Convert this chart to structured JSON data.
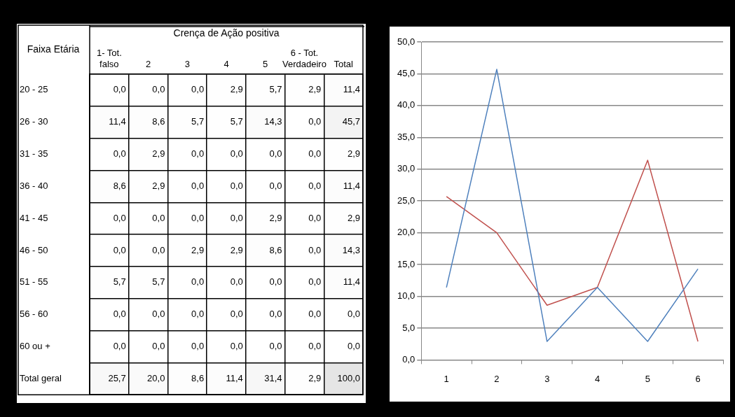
{
  "chart_data": [
    {
      "type": "heatmap",
      "xlabel": "Crença de Ação positiva",
      "ylabel": "Faixa Etária",
      "categories": [
        "1- Tot. falso",
        "2",
        "3",
        "4",
        "5",
        "6 - Tot. Verdadeiro",
        "Total"
      ],
      "y_categories": [
        "20 - 25",
        "26 - 30",
        "31 - 35",
        "36 - 40",
        "41 - 45",
        "46 - 50",
        "51 - 55",
        "56 - 60",
        "60 ou +",
        "Total geral"
      ],
      "cells": [
        [
          0.0,
          0.0,
          0.0,
          2.9,
          5.7,
          2.9,
          11.4
        ],
        [
          11.4,
          8.6,
          5.7,
          5.7,
          14.3,
          0.0,
          45.7
        ],
        [
          0.0,
          2.9,
          0.0,
          0.0,
          0.0,
          0.0,
          2.9
        ],
        [
          8.6,
          2.9,
          0.0,
          0.0,
          0.0,
          0.0,
          11.4
        ],
        [
          0.0,
          0.0,
          0.0,
          0.0,
          2.9,
          0.0,
          2.9
        ],
        [
          0.0,
          0.0,
          2.9,
          2.9,
          8.6,
          0.0,
          14.3
        ],
        [
          5.7,
          5.7,
          0.0,
          0.0,
          0.0,
          0.0,
          11.4
        ],
        [
          0.0,
          0.0,
          0.0,
          0.0,
          0.0,
          0.0,
          0.0
        ],
        [
          0.0,
          0.0,
          0.0,
          0.0,
          0.0,
          0.0,
          0.0
        ],
        [
          25.7,
          20.0,
          8.6,
          11.4,
          31.4,
          2.9,
          100.0
        ]
      ],
      "cell_labels": [
        [
          "0,0",
          "0,0",
          "0,0",
          "2,9",
          "5,7",
          "2,9",
          "11,4"
        ],
        [
          "11,4",
          "8,6",
          "5,7",
          "5,7",
          "14,3",
          "0,0",
          "45,7"
        ],
        [
          "0,0",
          "2,9",
          "0,0",
          "0,0",
          "0,0",
          "0,0",
          "2,9"
        ],
        [
          "8,6",
          "2,9",
          "0,0",
          "0,0",
          "0,0",
          "0,0",
          "11,4"
        ],
        [
          "0,0",
          "0,0",
          "0,0",
          "0,0",
          "2,9",
          "0,0",
          "2,9"
        ],
        [
          "0,0",
          "0,0",
          "2,9",
          "2,9",
          "8,6",
          "0,0",
          "14,3"
        ],
        [
          "5,7",
          "5,7",
          "0,0",
          "0,0",
          "0,0",
          "0,0",
          "11,4"
        ],
        [
          "0,0",
          "0,0",
          "0,0",
          "0,0",
          "0,0",
          "0,0",
          "0,0"
        ],
        [
          "0,0",
          "0,0",
          "0,0",
          "0,0",
          "0,0",
          "0,0",
          "0,0"
        ],
        [
          "25,7",
          "20,0",
          "8,6",
          "11,4",
          "31,4",
          "2,9",
          "100,0"
        ]
      ],
      "data_labels": true
    },
    {
      "type": "line",
      "categories": [
        "1",
        "2",
        "3",
        "4",
        "5",
        "6"
      ],
      "series": [
        {
          "color": "#4f81bd",
          "values": [
            11.4,
            45.7,
            2.9,
            11.4,
            2.9,
            14.3
          ]
        },
        {
          "color": "#c0504d",
          "values": [
            25.7,
            20.0,
            8.6,
            11.4,
            31.4,
            2.9
          ]
        }
      ],
      "ylim": [
        0,
        50
      ],
      "yticks": [
        {
          "value": 0,
          "label": "0,0"
        },
        {
          "value": 5,
          "label": "5,0"
        },
        {
          "value": 10,
          "label": "10,0"
        },
        {
          "value": 15,
          "label": "15,0"
        },
        {
          "value": 20,
          "label": "20,0"
        },
        {
          "value": 25,
          "label": "25,0"
        },
        {
          "value": 30,
          "label": "30,0"
        },
        {
          "value": 35,
          "label": "35,0"
        },
        {
          "value": 40,
          "label": "40,0"
        },
        {
          "value": 45,
          "label": "45,0"
        },
        {
          "value": 50,
          "label": "50,0"
        }
      ],
      "grid": "y",
      "legend": false,
      "marker": "none",
      "line_style": "solid"
    }
  ]
}
